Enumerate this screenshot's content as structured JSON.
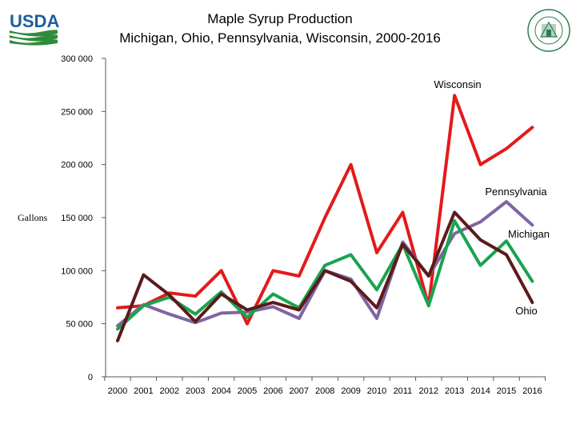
{
  "title": {
    "line1": "Maple Syrup Production",
    "line2": "Michigan, Ohio, Pennsylvania, Wisconsin, 2000-2016"
  },
  "logos": {
    "left": "usda-logo",
    "right": "agriculture-county-seal"
  },
  "chart_data": {
    "type": "line",
    "title": "Maple Syrup Production Michigan, Ohio, Pennsylvania, Wisconsin, 2000-2016",
    "xlabel": "",
    "ylabel": "Gallons",
    "ylim": [
      0,
      300000
    ],
    "yticks": [
      0,
      50000,
      100000,
      150000,
      200000,
      250000,
      300000
    ],
    "ytick_labels": [
      "0",
      "50 000",
      "100 000",
      "150 000",
      "200 000",
      "250 000",
      "300 000"
    ],
    "categories": [
      "2000",
      "2001",
      "2002",
      "2003",
      "2004",
      "2005",
      "2006",
      "2007",
      "2008",
      "2009",
      "2010",
      "2011",
      "2012",
      "2013",
      "2014",
      "2015",
      "2016"
    ],
    "grid": false,
    "series": [
      {
        "name": "Wisconsin",
        "color": "#e31a1c",
        "values": [
          65000,
          67000,
          79000,
          76000,
          100000,
          50000,
          100000,
          95000,
          150000,
          200000,
          117000,
          155000,
          67000,
          265000,
          200000,
          215000,
          235000
        ]
      },
      {
        "name": "Pennsylvania",
        "color": "#8064a2",
        "values": [
          48000,
          68000,
          59000,
          51000,
          60000,
          61000,
          66000,
          55000,
          100000,
          92000,
          55000,
          127000,
          95000,
          135000,
          146000,
          165000,
          143000
        ]
      },
      {
        "name": "Michigan",
        "color": "#1aa350",
        "values": [
          45000,
          67000,
          75000,
          59000,
          80000,
          56000,
          78000,
          65000,
          105000,
          115000,
          82000,
          125000,
          67000,
          147000,
          105000,
          128000,
          90000
        ]
      },
      {
        "name": "Ohio",
        "color": "#5c1a1a",
        "values": [
          34000,
          96000,
          77000,
          52000,
          78000,
          63000,
          70000,
          63000,
          100000,
          90000,
          65000,
          125000,
          95000,
          155000,
          129000,
          115000,
          70000
        ]
      }
    ],
    "series_labels": [
      "Wisconsin",
      "Pennsylvania",
      "Michigan",
      "Ohio"
    ]
  }
}
